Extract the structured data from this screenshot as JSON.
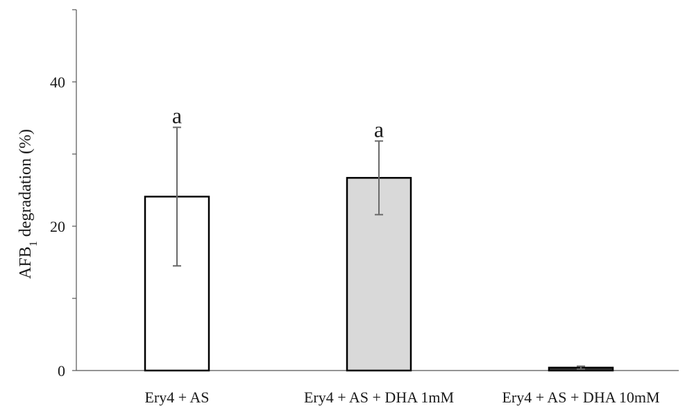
{
  "chart_data": {
    "type": "bar",
    "categories": [
      "Ery4 + AS",
      "Ery4 + AS + DHA 1mM",
      "Ery4 + AS + DHA 10mM"
    ],
    "values": [
      24.1,
      26.7,
      0.4
    ],
    "error": [
      9.6,
      5.1,
      0.2
    ],
    "significance_letters": [
      "a",
      "a",
      ""
    ],
    "bar_fills": [
      "#ffffff",
      "#d9d9d9",
      "#3a3a3a"
    ],
    "ylabel_main": "AFB",
    "ylabel_sub": "1",
    "ylabel_rest": " degradation (%)",
    "yticks": [
      0,
      20,
      40
    ],
    "yminor": [
      10,
      30,
      50
    ],
    "ylim": [
      0,
      50
    ],
    "grid": false,
    "legend": "none"
  }
}
